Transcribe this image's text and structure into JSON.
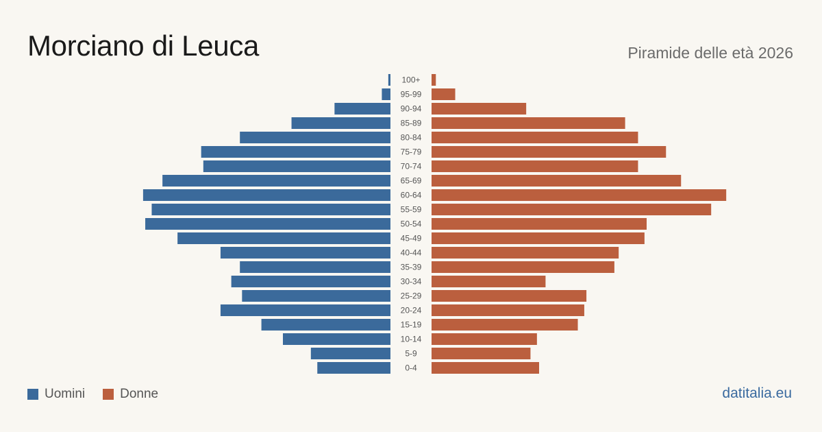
{
  "title": "Morciano di Leuca",
  "subtitle": "Piramide delle età 2026",
  "brand": "datitalia.eu",
  "colors": {
    "men": "#3b6a9b",
    "women": "#bb5f3e",
    "background": "#f9f7f2",
    "age_label": "#555555"
  },
  "chart_data": {
    "type": "bar",
    "orientation": "horizontal-pyramid",
    "categories": [
      "100+",
      "95-99",
      "90-94",
      "85-89",
      "80-84",
      "75-79",
      "70-74",
      "65-69",
      "60-64",
      "55-59",
      "50-54",
      "45-49",
      "40-44",
      "35-39",
      "30-34",
      "25-29",
      "20-24",
      "15-19",
      "10-14",
      "5-9",
      "0-4"
    ],
    "series": [
      {
        "name": "Uomini",
        "color": "#3b6a9b",
        "side": "left",
        "values": [
          1,
          4,
          26,
          46,
          70,
          88,
          87,
          106,
          115,
          111,
          114,
          99,
          79,
          70,
          74,
          69,
          79,
          60,
          50,
          37,
          34
        ]
      },
      {
        "name": "Donne",
        "color": "#bb5f3e",
        "side": "right",
        "values": [
          2,
          11,
          44,
          90,
          96,
          109,
          96,
          116,
          137,
          130,
          100,
          99,
          87,
          85,
          53,
          72,
          71,
          68,
          49,
          46,
          50
        ]
      }
    ],
    "grid": false,
    "legend_position": "bottom-left"
  }
}
